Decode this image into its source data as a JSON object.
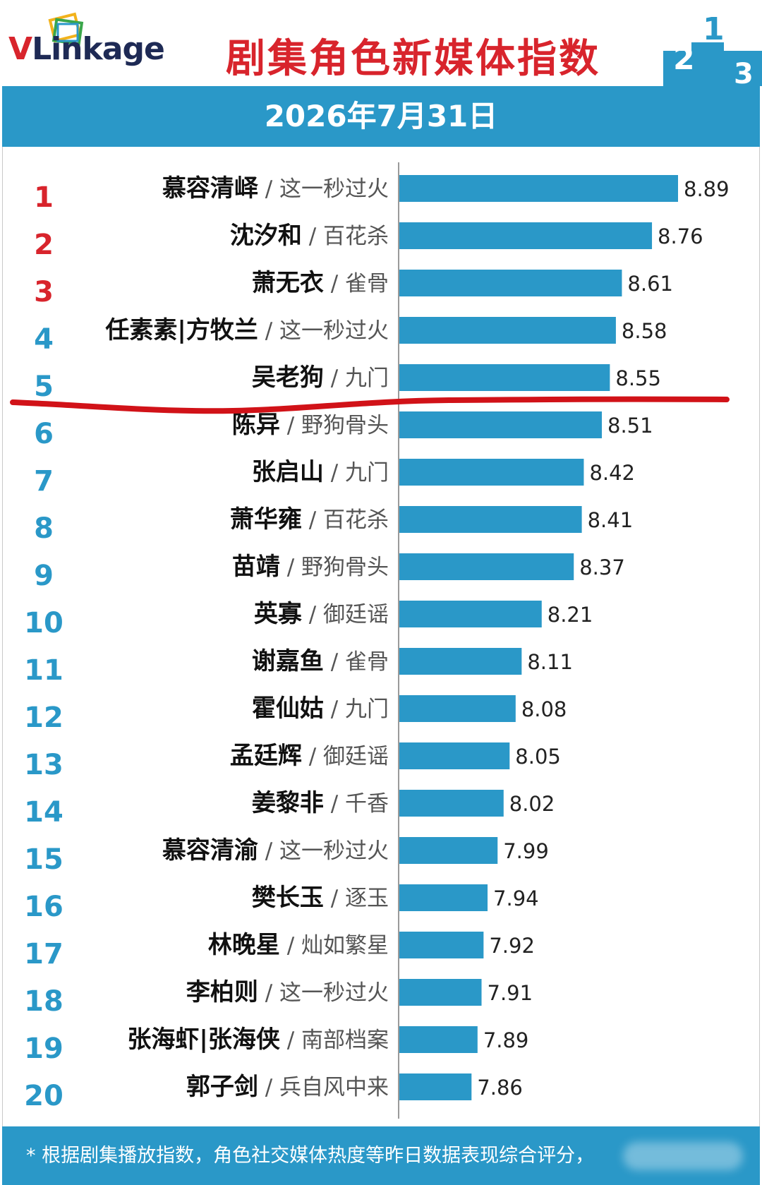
{
  "header": {
    "logo_v": "V",
    "logo_rest": "Linkage",
    "title": "剧集角色新媒体指数",
    "podium_labels": [
      "2",
      "1",
      "3"
    ]
  },
  "date_band": {
    "date": "2026年7月31日"
  },
  "footer": {
    "note": "* 根据剧集播放指数，角色社交媒体热度等昨日数据表现综合评分，"
  },
  "colors": {
    "bar": "#2a98c8",
    "band": "#2a98c8",
    "title_red": "#d8242c",
    "rank_top3": "#d8242c",
    "rank_other": "#2a98c8",
    "annotation_line": "#d11218"
  },
  "chart_data": {
    "type": "bar",
    "orientation": "horizontal",
    "ranks": [
      1,
      2,
      3,
      4,
      5,
      6,
      7,
      8,
      9,
      10,
      11,
      12,
      13,
      14,
      15,
      16,
      17,
      18,
      19,
      20
    ],
    "roles": [
      "慕容清峄",
      "沈汐和",
      "萧无衣",
      "任素素|方牧兰",
      "吴老狗",
      "陈异",
      "张启山",
      "萧华雍",
      "苗靖",
      "英寡",
      "谢嘉鱼",
      "霍仙姑",
      "孟廷辉",
      "姜黎非",
      "慕容清渝",
      "樊长玉",
      "林晚星",
      "李柏则",
      "张海虾|张海侠",
      "郭子剑"
    ],
    "shows": [
      "这一秒过火",
      "百花杀",
      "雀骨",
      "这一秒过火",
      "九门",
      "野狗骨头",
      "九门",
      "百花杀",
      "野狗骨头",
      "御廷谣",
      "雀骨",
      "九门",
      "御廷谣",
      "千香",
      "这一秒过火",
      "逐玉",
      "灿如繁星",
      "这一秒过火",
      "南部档案",
      "兵自风中来"
    ],
    "values": [
      8.89,
      8.76,
      8.61,
      8.58,
      8.55,
      8.51,
      8.42,
      8.41,
      8.37,
      8.21,
      8.11,
      8.08,
      8.05,
      8.02,
      7.99,
      7.94,
      7.92,
      7.91,
      7.89,
      7.86
    ],
    "value_labels": [
      "8.89",
      "8.76",
      "8.61",
      "8.58",
      "8.55",
      "8.51",
      "8.42",
      "8.41",
      "8.37",
      "8.21",
      "8.11",
      "8.08",
      "8.05",
      "8.02",
      "7.99",
      "7.94",
      "7.92",
      "7.91",
      "7.89",
      "7.86"
    ],
    "separator": "/",
    "grid": false,
    "legend": "none"
  }
}
